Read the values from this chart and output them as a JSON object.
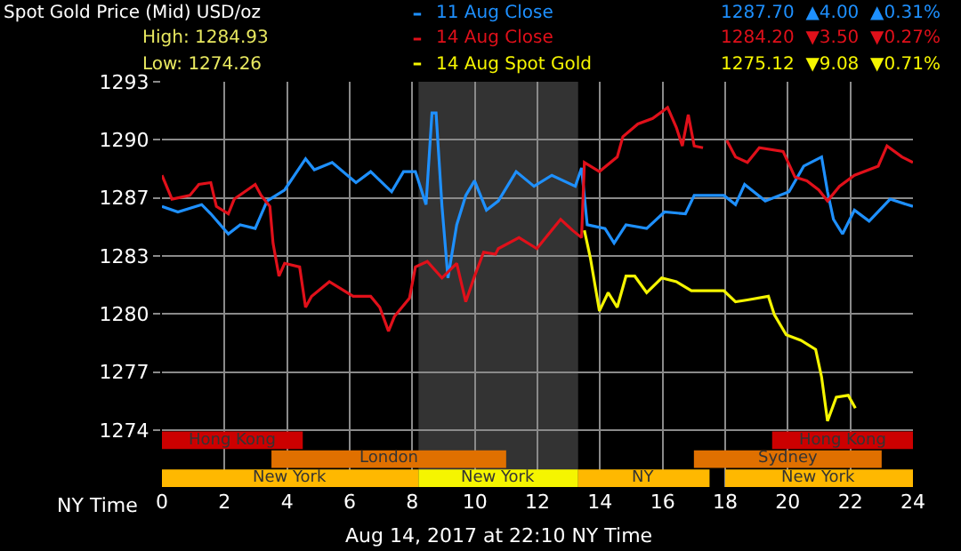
{
  "chart_data": {
    "type": "line",
    "title": "Spot Gold Price (Mid) USD/oz",
    "annotations": [
      "High: 1284.93",
      "Low: 1274.26",
      "1287.70  ▲4.00  ▲0.31%",
      "1284.20  ▼3.50  ▼0.27%",
      "1275.12  ▼9.08  ▼0.71%",
      "Aug 14, 2017 at 22:10 NY Time"
    ],
    "xlabel": "NY Time",
    "legend": "top",
    "xlim": [
      0,
      24
    ],
    "xticks": [
      0,
      2,
      4,
      6,
      8,
      10,
      12,
      14,
      16,
      18,
      20,
      22,
      24
    ],
    "ylim": [
      1270.9,
      1293
    ],
    "yticks": [
      {
        "value": 1274,
        "label": "1274"
      },
      {
        "value": 1277.17,
        "label": "1277"
      },
      {
        "value": 1280.33,
        "label": "1280"
      },
      {
        "value": 1283.5,
        "label": "1283"
      },
      {
        "value": 1286.67,
        "label": "1287"
      },
      {
        "value": 1289.83,
        "label": "1290"
      },
      {
        "value": 1293,
        "label": "1293"
      }
    ],
    "grid": true,
    "bands": [
      {
        "axis": "x",
        "from": 8.2,
        "to": 13.3,
        "color": "#333333"
      },
      {
        "axis": "x",
        "from": 0,
        "to": 8.2,
        "label": "New York",
        "color": "#ffb800"
      },
      {
        "axis": "x",
        "from": 8.2,
        "to": 13.3,
        "label": "New York",
        "color": "#f5f500"
      },
      {
        "axis": "x",
        "from": 13.3,
        "to": 17.5,
        "label": "NY",
        "color": "#ffb800"
      },
      {
        "axis": "x",
        "from": 18,
        "to": 24,
        "label": "New York",
        "color": "#ffb800"
      },
      {
        "axis": "x",
        "from": 3.5,
        "to": 11,
        "label": "London",
        "color": "#e07000"
      },
      {
        "axis": "x",
        "from": 17,
        "to": 23,
        "label": "Sydney",
        "color": "#e07000"
      },
      {
        "axis": "x",
        "from": 0,
        "to": 4.5,
        "label": "Hong Kong",
        "color": "#cc0000"
      },
      {
        "axis": "x",
        "from": 19.5,
        "to": 24,
        "label": "Hong Kong",
        "color": "#cc0000"
      }
    ],
    "series": [
      {
        "name": "11 Aug Close",
        "color": "#1e90ff",
        "x": [
          0,
          0.51,
          1.27,
          1.56,
          2.12,
          2.5,
          2.98,
          3.36,
          3.92,
          4.59,
          4.87,
          5.44,
          6.2,
          6.67,
          7.34,
          7.72,
          8.1,
          8.44,
          8.63,
          8.76,
          8.95,
          9.14,
          9.42,
          9.71,
          9.99,
          10.37,
          10.75,
          11.32,
          11.89,
          12.46,
          13.21,
          13.41,
          13.59,
          14.16,
          14.45,
          14.83,
          15.49,
          16.06,
          16.73,
          17.01,
          17.96,
          18.33,
          18.62,
          19.28,
          20.04,
          20.51,
          21.08,
          21.27,
          21.46,
          21.75,
          22.13,
          22.6,
          23.27,
          24
        ],
        "values": [
          1286.2,
          1285.9,
          1286.3,
          1285.8,
          1284.7,
          1285.2,
          1285.0,
          1286.5,
          1287.1,
          1288.8,
          1288.2,
          1288.6,
          1287.5,
          1288.1,
          1287.0,
          1288.1,
          1288.1,
          1286.3,
          1291.3,
          1291.3,
          1286.2,
          1282.3,
          1285.2,
          1286.8,
          1287.6,
          1286.0,
          1286.5,
          1288.1,
          1287.3,
          1287.9,
          1287.3,
          1288.3,
          1285.2,
          1285.0,
          1284.2,
          1285.2,
          1285.0,
          1285.9,
          1285.8,
          1286.8,
          1286.8,
          1286.3,
          1287.4,
          1286.5,
          1287.0,
          1288.4,
          1288.9,
          1287.0,
          1285.5,
          1284.7,
          1286.0,
          1285.4,
          1286.6,
          1286.2
        ]
      },
      {
        "name": "14 Aug Close",
        "color": "#e0101a",
        "x": [
          0,
          0.32,
          0.89,
          1.18,
          1.56,
          1.74,
          2.12,
          2.31,
          2.98,
          3.17,
          3.45,
          3.55,
          3.74,
          3.92,
          4.4,
          4.59,
          4.78,
          5.35,
          5.82,
          6.11,
          6.67,
          6.96,
          7.24,
          7.43,
          7.91,
          8.1,
          8.48,
          8.95,
          9.42,
          9.71,
          9.99,
          10.28,
          10.66,
          10.75,
          11.41,
          11.98,
          12.74,
          13.12,
          13.41,
          13.5,
          13.98,
          14.55,
          14.73,
          15.21,
          15.68,
          16.16,
          16.44,
          16.63,
          16.82,
          17.01,
          17.29,
          17.6,
          18.05,
          18.33,
          18.71,
          19.09,
          19.85,
          20.23,
          20.61,
          20.99,
          21.27,
          21.65,
          22.13,
          22.89,
          23.17,
          23.65,
          24
        ],
        "values": [
          1287.9,
          1286.6,
          1286.8,
          1287.4,
          1287.5,
          1286.2,
          1285.8,
          1286.6,
          1287.4,
          1286.8,
          1286.2,
          1284.2,
          1282.4,
          1283.1,
          1282.9,
          1280.7,
          1281.3,
          1282.1,
          1281.6,
          1281.3,
          1281.3,
          1280.7,
          1279.4,
          1280.2,
          1281.2,
          1282.9,
          1283.2,
          1282.3,
          1283.1,
          1281.0,
          1282.4,
          1283.7,
          1283.6,
          1283.9,
          1284.5,
          1283.9,
          1285.5,
          1284.9,
          1284.5,
          1288.6,
          1288.1,
          1288.9,
          1290.0,
          1290.7,
          1291.0,
          1291.6,
          1290.5,
          1289.5,
          1291.2,
          1289.5,
          1289.4,
          null,
          1289.8,
          1288.9,
          1288.6,
          1289.4,
          1289.2,
          1287.8,
          1287.6,
          1287.1,
          1286.5,
          1287.3,
          1287.9,
          1288.4,
          1289.5,
          1288.9,
          1288.6
        ]
      },
      {
        "name": "14 Aug Spot Gold",
        "color": "#f5f500",
        "x": [
          13.5,
          13.69,
          13.98,
          14.26,
          14.55,
          14.83,
          15.11,
          15.49,
          15.97,
          16.44,
          16.92,
          17.96,
          18.33,
          18.71,
          19.38,
          19.57,
          19.95,
          20.42,
          20.89,
          21.08,
          21.27,
          21.55,
          21.93,
          22.16
        ],
        "values": [
          1284.9,
          1283.4,
          1280.5,
          1281.5,
          1280.7,
          1282.4,
          1282.4,
          1281.5,
          1282.3,
          1282.1,
          1281.6,
          1281.6,
          1281.0,
          1281.1,
          1281.3,
          1280.3,
          1279.2,
          1278.9,
          1278.4,
          1276.9,
          1274.5,
          1275.8,
          1275.9,
          1275.2
        ]
      }
    ]
  }
}
